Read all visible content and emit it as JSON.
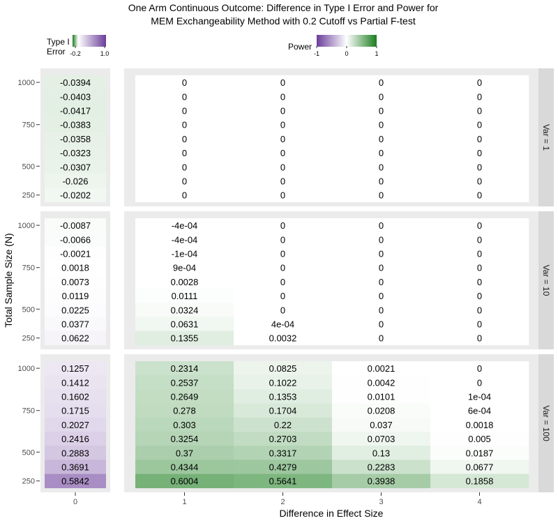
{
  "chart_data": {
    "type": "heatmap",
    "title": "One Arm Continuous Outcome: Difference in Type I Error and Power for",
    "subtitle": "MEM Exchangeability Method with 0.2 Cutoff vs Partial F-test",
    "xlabel": "Difference in Effect Size",
    "ylabel": "Total Sample Size (N)",
    "y_ticks": [
      "250",
      "500",
      "750",
      "1000"
    ],
    "legends": {
      "type1": {
        "title_line1": "Type I",
        "title_line2": "Error",
        "min_label": "-0.2",
        "max_label": "1.0",
        "low_color": "#1b7d1e",
        "high_color": "#6a3d9a"
      },
      "power": {
        "title": "Power",
        "labels": [
          "-1",
          "0",
          "1"
        ],
        "low_color": "#6a3d9a",
        "mid_color": "#ffffff",
        "high_color": "#1b7d1e"
      }
    },
    "type1_panel": {
      "x_label": "0",
      "rows": [
        {
          "strip": "Var = 1",
          "labels": [
            "-0.0394",
            "-0.0403",
            "-0.0417",
            "-0.0383",
            "-0.0358",
            "-0.0323",
            "-0.0307",
            "-0.026",
            "-0.0202"
          ],
          "values": [
            -0.0394,
            -0.0403,
            -0.0417,
            -0.0383,
            -0.0358,
            -0.0323,
            -0.0307,
            -0.026,
            -0.0202
          ]
        },
        {
          "strip": "Var = 10",
          "labels": [
            "-0.0087",
            "-0.0066",
            "-0.0021",
            "0.0018",
            "0.0073",
            "0.0119",
            "0.0225",
            "0.0377",
            "0.0622"
          ],
          "values": [
            -0.0087,
            -0.0066,
            -0.0021,
            0.0018,
            0.0073,
            0.0119,
            0.0225,
            0.0377,
            0.0622
          ]
        },
        {
          "strip": "Var = 100",
          "labels": [
            "0.1257",
            "0.1412",
            "0.1602",
            "0.1715",
            "0.2027",
            "0.2416",
            "0.2883",
            "0.3691",
            "0.5842"
          ],
          "values": [
            0.1257,
            0.1412,
            0.1602,
            0.1715,
            0.2027,
            0.2416,
            0.2883,
            0.3691,
            0.5842
          ]
        }
      ]
    },
    "power_panel": {
      "x_labels": [
        "1",
        "2",
        "3",
        "4"
      ],
      "rows": [
        {
          "strip": "Var = 1",
          "columns": [
            {
              "labels": [
                "0",
                "0",
                "0",
                "0",
                "0",
                "0",
                "0",
                "0",
                "0"
              ],
              "values": [
                0,
                0,
                0,
                0,
                0,
                0,
                0,
                0,
                0
              ]
            },
            {
              "labels": [
                "0",
                "0",
                "0",
                "0",
                "0",
                "0",
                "0",
                "0",
                "0"
              ],
              "values": [
                0,
                0,
                0,
                0,
                0,
                0,
                0,
                0,
                0
              ]
            },
            {
              "labels": [
                "0",
                "0",
                "0",
                "0",
                "0",
                "0",
                "0",
                "0",
                "0"
              ],
              "values": [
                0,
                0,
                0,
                0,
                0,
                0,
                0,
                0,
                0
              ]
            },
            {
              "labels": [
                "0",
                "0",
                "0",
                "0",
                "0",
                "0",
                "0",
                "0",
                "0"
              ],
              "values": [
                0,
                0,
                0,
                0,
                0,
                0,
                0,
                0,
                0
              ]
            }
          ]
        },
        {
          "strip": "Var = 10",
          "columns": [
            {
              "labels": [
                "-4e-04",
                "-4e-04",
                "-1e-04",
                "9e-04",
                "0.0028",
                "0.0111",
                "0.0324",
                "0.0631",
                "0.1355"
              ],
              "values": [
                -0.0004,
                -0.0004,
                -0.0001,
                0.0009,
                0.0028,
                0.0111,
                0.0324,
                0.0631,
                0.1355
              ]
            },
            {
              "labels": [
                "0",
                "0",
                "0",
                "0",
                "0",
                "0",
                "0",
                "4e-04",
                "0.0032"
              ],
              "values": [
                0,
                0,
                0,
                0,
                0,
                0,
                0,
                0.0004,
                0.0032
              ]
            },
            {
              "labels": [
                "0",
                "0",
                "0",
                "0",
                "0",
                "0",
                "0",
                "0",
                "0"
              ],
              "values": [
                0,
                0,
                0,
                0,
                0,
                0,
                0,
                0,
                0
              ]
            },
            {
              "labels": [
                "0",
                "0",
                "0",
                "0",
                "0",
                "0",
                "0",
                "0",
                "0"
              ],
              "values": [
                0,
                0,
                0,
                0,
                0,
                0,
                0,
                0,
                0
              ]
            }
          ]
        },
        {
          "strip": "Var = 100",
          "columns": [
            {
              "labels": [
                "0.2314",
                "0.2537",
                "0.2649",
                "0.278",
                "0.303",
                "0.3254",
                "0.37",
                "0.4344",
                "0.6004"
              ],
              "values": [
                0.2314,
                0.2537,
                0.2649,
                0.278,
                0.303,
                0.3254,
                0.37,
                0.4344,
                0.6004
              ]
            },
            {
              "labels": [
                "0.0825",
                "0.1022",
                "0.1353",
                "0.1704",
                "0.22",
                "0.2703",
                "0.3317",
                "0.4279",
                "0.5641"
              ],
              "values": [
                0.0825,
                0.1022,
                0.1353,
                0.1704,
                0.22,
                0.2703,
                0.3317,
                0.4279,
                0.5641
              ]
            },
            {
              "labels": [
                "0.0021",
                "0.0042",
                "0.0101",
                "0.0208",
                "0.037",
                "0.0703",
                "0.13",
                "0.2283",
                "0.3938"
              ],
              "values": [
                0.0021,
                0.0042,
                0.0101,
                0.0208,
                0.037,
                0.0703,
                0.13,
                0.2283,
                0.3938
              ]
            },
            {
              "labels": [
                "0",
                "0",
                "1e-04",
                "6e-04",
                "0.0018",
                "0.005",
                "0.0187",
                "0.0677",
                "0.1858"
              ],
              "values": [
                0,
                0,
                0.0001,
                0.0006,
                0.0018,
                0.005,
                0.0187,
                0.0677,
                0.1858
              ]
            }
          ]
        }
      ]
    }
  }
}
